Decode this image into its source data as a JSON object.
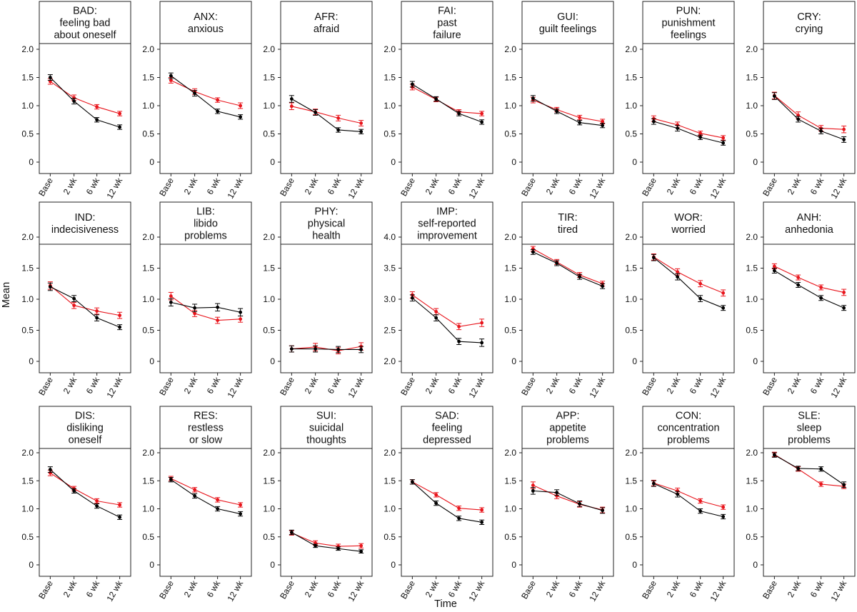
{
  "figure": {
    "ylabel": "Mean",
    "xlabel": "Time",
    "colors": {
      "series_a": "#000000",
      "series_b": "#e8141b"
    }
  },
  "chart_data": [
    {
      "type": "line",
      "title": [
        "BAD:",
        "feeling bad",
        "about oneself"
      ],
      "categories": [
        "Base",
        "2 wk",
        "6 wk",
        "12 wk"
      ],
      "ylim": [
        0,
        2
      ],
      "yticks": [
        "0",
        "0.5",
        "1.0",
        "1.5",
        "2.0"
      ],
      "series": [
        {
          "color": "#000000",
          "values": [
            1.5,
            1.08,
            0.75,
            0.62
          ],
          "err": [
            0.05,
            0.05,
            0.04,
            0.04
          ]
        },
        {
          "color": "#e8141b",
          "values": [
            1.43,
            1.14,
            0.98,
            0.86
          ],
          "err": [
            0.05,
            0.05,
            0.04,
            0.04
          ]
        }
      ]
    },
    {
      "type": "line",
      "title": [
        "ANX:",
        "anxious"
      ],
      "categories": [
        "Base",
        "2 wk",
        "6 wk",
        "12 wk"
      ],
      "ylim": [
        0,
        2
      ],
      "yticks": [
        "0",
        "0.5",
        "1.0",
        "1.5",
        "2.0"
      ],
      "series": [
        {
          "color": "#000000",
          "values": [
            1.53,
            1.22,
            0.9,
            0.8
          ],
          "err": [
            0.05,
            0.05,
            0.04,
            0.04
          ]
        },
        {
          "color": "#e8141b",
          "values": [
            1.45,
            1.25,
            1.1,
            1.0
          ],
          "err": [
            0.05,
            0.05,
            0.04,
            0.05
          ]
        }
      ]
    },
    {
      "type": "line",
      "title": [
        "AFR:",
        "afraid"
      ],
      "categories": [
        "Base",
        "2 wk",
        "6 wk",
        "12 wk"
      ],
      "ylim": [
        0,
        2
      ],
      "yticks": [
        "0",
        "0.5",
        "1.0",
        "1.5",
        "2.0"
      ],
      "series": [
        {
          "color": "#000000",
          "values": [
            1.12,
            0.88,
            0.57,
            0.54
          ],
          "err": [
            0.06,
            0.05,
            0.04,
            0.04
          ]
        },
        {
          "color": "#e8141b",
          "values": [
            0.99,
            0.89,
            0.78,
            0.69
          ],
          "err": [
            0.06,
            0.05,
            0.05,
            0.05
          ]
        }
      ]
    },
    {
      "type": "line",
      "title": [
        "FAI:",
        "past",
        "failure"
      ],
      "categories": [
        "Base",
        "2 wk",
        "6 wk",
        "12 wk"
      ],
      "ylim": [
        0,
        2
      ],
      "yticks": [
        "0",
        "0.5",
        "1.0",
        "1.5",
        "2.0"
      ],
      "series": [
        {
          "color": "#000000",
          "values": [
            1.38,
            1.12,
            0.86,
            0.71
          ],
          "err": [
            0.05,
            0.04,
            0.04,
            0.04
          ]
        },
        {
          "color": "#e8141b",
          "values": [
            1.33,
            1.11,
            0.89,
            0.86
          ],
          "err": [
            0.05,
            0.04,
            0.04,
            0.04
          ]
        }
      ]
    },
    {
      "type": "line",
      "title": [
        "GUI:",
        "guilt feelings"
      ],
      "categories": [
        "Base",
        "2 wk",
        "6 wk",
        "12 wk"
      ],
      "ylim": [
        0,
        2
      ],
      "yticks": [
        "0",
        "0.5",
        "1.0",
        "1.5",
        "2.0"
      ],
      "series": [
        {
          "color": "#000000",
          "values": [
            1.13,
            0.9,
            0.7,
            0.65
          ],
          "err": [
            0.05,
            0.04,
            0.04,
            0.04
          ]
        },
        {
          "color": "#e8141b",
          "values": [
            1.1,
            0.93,
            0.79,
            0.72
          ],
          "err": [
            0.05,
            0.04,
            0.04,
            0.04
          ]
        }
      ]
    },
    {
      "type": "line",
      "title": [
        "PUN:",
        "punishment",
        "feelings"
      ],
      "categories": [
        "Base",
        "2 wk",
        "6 wk",
        "12 wk"
      ],
      "ylim": [
        0,
        2
      ],
      "yticks": [
        "0",
        "0.5",
        "1.0",
        "1.5",
        "2.0"
      ],
      "series": [
        {
          "color": "#000000",
          "values": [
            0.72,
            0.6,
            0.44,
            0.34
          ],
          "err": [
            0.05,
            0.05,
            0.04,
            0.04
          ]
        },
        {
          "color": "#e8141b",
          "values": [
            0.77,
            0.66,
            0.51,
            0.43
          ],
          "err": [
            0.05,
            0.05,
            0.04,
            0.04
          ]
        }
      ]
    },
    {
      "type": "line",
      "title": [
        "CRY:",
        "crying"
      ],
      "categories": [
        "Base",
        "2 wk",
        "6 wk",
        "12 wk"
      ],
      "ylim": [
        0,
        2
      ],
      "yticks": [
        "0",
        "0.5",
        "1.0",
        "1.5",
        "2.0"
      ],
      "series": [
        {
          "color": "#000000",
          "values": [
            1.17,
            0.76,
            0.55,
            0.4
          ],
          "err": [
            0.06,
            0.05,
            0.05,
            0.05
          ]
        },
        {
          "color": "#e8141b",
          "values": [
            1.18,
            0.83,
            0.6,
            0.58
          ],
          "err": [
            0.06,
            0.06,
            0.05,
            0.06
          ]
        }
      ]
    },
    {
      "type": "line",
      "title": [
        "IND:",
        "indecisiveness"
      ],
      "categories": [
        "Base",
        "2 wk",
        "6 wk",
        "12 wk"
      ],
      "ylim": [
        0,
        2
      ],
      "yticks": [
        "0",
        "0.5",
        "1.0",
        "1.5",
        "2.0"
      ],
      "series": [
        {
          "color": "#000000",
          "values": [
            1.2,
            1.01,
            0.7,
            0.55
          ],
          "err": [
            0.06,
            0.05,
            0.05,
            0.04
          ]
        },
        {
          "color": "#e8141b",
          "values": [
            1.22,
            0.9,
            0.81,
            0.74
          ],
          "err": [
            0.06,
            0.05,
            0.05,
            0.05
          ]
        }
      ]
    },
    {
      "type": "line",
      "title": [
        "LIB:",
        "libido",
        "problems"
      ],
      "categories": [
        "Base",
        "2 wk",
        "6 wk",
        "12 wk"
      ],
      "ylim": [
        0,
        2
      ],
      "yticks": [
        "0",
        "0.5",
        "1.0",
        "1.5",
        "2.0"
      ],
      "series": [
        {
          "color": "#000000",
          "values": [
            0.95,
            0.86,
            0.87,
            0.79
          ],
          "err": [
            0.06,
            0.06,
            0.06,
            0.06
          ]
        },
        {
          "color": "#e8141b",
          "values": [
            1.05,
            0.77,
            0.66,
            0.68
          ],
          "err": [
            0.06,
            0.05,
            0.05,
            0.05
          ]
        }
      ]
    },
    {
      "type": "line",
      "title": [
        "PHY:",
        "physical",
        "health"
      ],
      "categories": [
        "Base",
        "2 wk",
        "6 wk",
        "12 wk"
      ],
      "ylim": [
        0,
        2
      ],
      "yticks": [
        "0",
        "0.5",
        "1.0",
        "1.5",
        "2.0"
      ],
      "series": [
        {
          "color": "#000000",
          "values": [
            0.2,
            0.2,
            0.19,
            0.19
          ],
          "err": [
            0.05,
            0.05,
            0.05,
            0.05
          ]
        },
        {
          "color": "#e8141b",
          "values": [
            0.2,
            0.23,
            0.17,
            0.24
          ],
          "err": [
            0.05,
            0.06,
            0.05,
            0.06
          ]
        }
      ]
    },
    {
      "type": "line",
      "title": [
        "IMP:",
        "self-reported",
        "improvement"
      ],
      "categories": [
        "Base",
        "2 wk",
        "6 wk",
        "12 wk"
      ],
      "ylim": [
        2,
        4
      ],
      "yticks": [
        "2.0",
        "2.5",
        "3.0",
        "3.5",
        "4.0"
      ],
      "series": [
        {
          "color": "#000000",
          "values": [
            3.02,
            2.7,
            2.32,
            2.3
          ],
          "err": [
            0.05,
            0.05,
            0.05,
            0.06
          ]
        },
        {
          "color": "#e8141b",
          "values": [
            3.07,
            2.8,
            2.56,
            2.62
          ],
          "err": [
            0.05,
            0.05,
            0.05,
            0.06
          ]
        }
      ]
    },
    {
      "type": "line",
      "title": [
        "TIR:",
        "tired"
      ],
      "categories": [
        "Base",
        "2 wk",
        "6 wk",
        "12 wk"
      ],
      "ylim": [
        0,
        2
      ],
      "yticks": [
        "0",
        "0.5",
        "1.0",
        "1.5",
        "2.0"
      ],
      "series": [
        {
          "color": "#000000",
          "values": [
            1.76,
            1.58,
            1.36,
            1.21
          ],
          "err": [
            0.04,
            0.04,
            0.04,
            0.04
          ]
        },
        {
          "color": "#e8141b",
          "values": [
            1.81,
            1.6,
            1.39,
            1.25
          ],
          "err": [
            0.04,
            0.04,
            0.04,
            0.04
          ]
        }
      ]
    },
    {
      "type": "line",
      "title": [
        "WOR:",
        "worried"
      ],
      "categories": [
        "Base",
        "2 wk",
        "6 wk",
        "12 wk"
      ],
      "ylim": [
        0,
        2
      ],
      "yticks": [
        "0",
        "0.5",
        "1.0",
        "1.5",
        "2.0"
      ],
      "series": [
        {
          "color": "#000000",
          "values": [
            1.67,
            1.36,
            1.01,
            0.86
          ],
          "err": [
            0.05,
            0.05,
            0.05,
            0.04
          ]
        },
        {
          "color": "#e8141b",
          "values": [
            1.68,
            1.44,
            1.25,
            1.1
          ],
          "err": [
            0.05,
            0.05,
            0.05,
            0.05
          ]
        }
      ]
    },
    {
      "type": "line",
      "title": [
        "ANH:",
        "anhedonia"
      ],
      "categories": [
        "Base",
        "2 wk",
        "6 wk",
        "12 wk"
      ],
      "ylim": [
        0,
        2
      ],
      "yticks": [
        "0",
        "0.5",
        "1.0",
        "1.5",
        "2.0"
      ],
      "series": [
        {
          "color": "#000000",
          "values": [
            1.46,
            1.23,
            1.02,
            0.86
          ],
          "err": [
            0.04,
            0.04,
            0.04,
            0.04
          ]
        },
        {
          "color": "#e8141b",
          "values": [
            1.53,
            1.35,
            1.19,
            1.11
          ],
          "err": [
            0.04,
            0.04,
            0.04,
            0.05
          ]
        }
      ]
    },
    {
      "type": "line",
      "title": [
        "DIS:",
        "disliking",
        "oneself"
      ],
      "categories": [
        "Base",
        "2 wk",
        "6 wk",
        "12 wk"
      ],
      "ylim": [
        0,
        2
      ],
      "yticks": [
        "0",
        "0.5",
        "1.0",
        "1.5",
        "2.0"
      ],
      "series": [
        {
          "color": "#000000",
          "values": [
            1.7,
            1.32,
            1.05,
            0.85
          ],
          "err": [
            0.05,
            0.04,
            0.04,
            0.04
          ]
        },
        {
          "color": "#e8141b",
          "values": [
            1.64,
            1.36,
            1.14,
            1.07
          ],
          "err": [
            0.05,
            0.04,
            0.04,
            0.04
          ]
        }
      ]
    },
    {
      "type": "line",
      "title": [
        "RES:",
        "restless",
        "or slow"
      ],
      "categories": [
        "Base",
        "2 wk",
        "6 wk",
        "12 wk"
      ],
      "ylim": [
        0,
        2
      ],
      "yticks": [
        "0",
        "0.5",
        "1.0",
        "1.5",
        "2.0"
      ],
      "series": [
        {
          "color": "#000000",
          "values": [
            1.52,
            1.23,
            1.0,
            0.91
          ],
          "err": [
            0.04,
            0.04,
            0.04,
            0.04
          ]
        },
        {
          "color": "#e8141b",
          "values": [
            1.54,
            1.34,
            1.16,
            1.07
          ],
          "err": [
            0.04,
            0.04,
            0.04,
            0.04
          ]
        }
      ]
    },
    {
      "type": "line",
      "title": [
        "SUI:",
        "suicidal",
        "thoughts"
      ],
      "categories": [
        "Base",
        "2 wk",
        "6 wk",
        "12 wk"
      ],
      "ylim": [
        0,
        2
      ],
      "yticks": [
        "0",
        "0.5",
        "1.0",
        "1.5",
        "2.0"
      ],
      "series": [
        {
          "color": "#000000",
          "values": [
            0.58,
            0.34,
            0.29,
            0.24
          ],
          "err": [
            0.04,
            0.03,
            0.03,
            0.03
          ]
        },
        {
          "color": "#e8141b",
          "values": [
            0.57,
            0.39,
            0.33,
            0.34
          ],
          "err": [
            0.04,
            0.04,
            0.04,
            0.04
          ]
        }
      ]
    },
    {
      "type": "line",
      "title": [
        "SAD:",
        "feeling",
        "depressed"
      ],
      "categories": [
        "Base",
        "2 wk",
        "6 wk",
        "12 wk"
      ],
      "ylim": [
        0,
        2
      ],
      "yticks": [
        "0",
        "0.5",
        "1.0",
        "1.5",
        "2.0"
      ],
      "series": [
        {
          "color": "#000000",
          "values": [
            1.48,
            1.1,
            0.83,
            0.76
          ],
          "err": [
            0.04,
            0.04,
            0.04,
            0.04
          ]
        },
        {
          "color": "#e8141b",
          "values": [
            1.48,
            1.25,
            1.01,
            0.98
          ],
          "err": [
            0.04,
            0.04,
            0.04,
            0.04
          ]
        }
      ]
    },
    {
      "type": "line",
      "title": [
        "APP:",
        "appetite",
        "problems"
      ],
      "categories": [
        "Base",
        "2 wk",
        "6 wk",
        "12 wk"
      ],
      "ylim": [
        0,
        2
      ],
      "yticks": [
        "0",
        "0.5",
        "1.0",
        "1.5",
        "2.0"
      ],
      "series": [
        {
          "color": "#000000",
          "values": [
            1.32,
            1.29,
            1.09,
            0.97
          ],
          "err": [
            0.06,
            0.05,
            0.05,
            0.05
          ]
        },
        {
          "color": "#e8141b",
          "values": [
            1.42,
            1.23,
            1.08,
            0.98
          ],
          "err": [
            0.06,
            0.05,
            0.05,
            0.05
          ]
        }
      ]
    },
    {
      "type": "line",
      "title": [
        "CON:",
        "concentration",
        "problems"
      ],
      "categories": [
        "Base",
        "2 wk",
        "6 wk",
        "12 wk"
      ],
      "ylim": [
        0,
        2
      ],
      "yticks": [
        "0",
        "0.5",
        "1.0",
        "1.5",
        "2.0"
      ],
      "series": [
        {
          "color": "#000000",
          "values": [
            1.45,
            1.26,
            0.96,
            0.86
          ],
          "err": [
            0.05,
            0.05,
            0.04,
            0.04
          ]
        },
        {
          "color": "#e8141b",
          "values": [
            1.46,
            1.32,
            1.14,
            1.03
          ],
          "err": [
            0.05,
            0.05,
            0.04,
            0.04
          ]
        }
      ]
    },
    {
      "type": "line",
      "title": [
        "SLE:",
        "sleep",
        "problems"
      ],
      "categories": [
        "Base",
        "2 wk",
        "6 wk",
        "12 wk"
      ],
      "ylim": [
        0,
        2
      ],
      "yticks": [
        "0",
        "0.5",
        "1.0",
        "1.5",
        "2.0"
      ],
      "series": [
        {
          "color": "#000000",
          "values": [
            1.96,
            1.72,
            1.71,
            1.43
          ],
          "err": [
            0.04,
            0.04,
            0.04,
            0.05
          ]
        },
        {
          "color": "#e8141b",
          "values": [
            1.97,
            1.71,
            1.44,
            1.4
          ],
          "err": [
            0.04,
            0.04,
            0.04,
            0.04
          ]
        }
      ]
    }
  ]
}
